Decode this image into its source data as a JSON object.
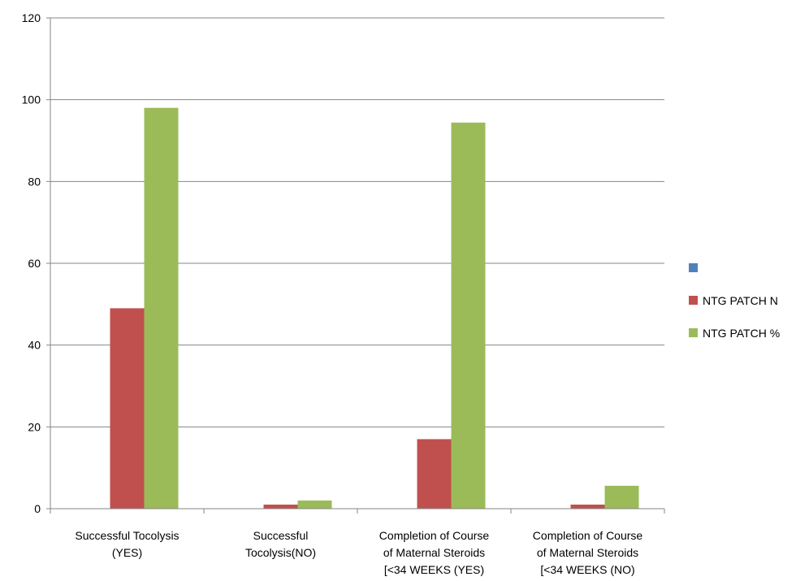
{
  "chart_data": {
    "type": "bar",
    "title": "",
    "xlabel": "",
    "ylabel": "",
    "ylim": [
      0,
      120
    ],
    "yticks": [
      0,
      20,
      40,
      60,
      80,
      100,
      120
    ],
    "grid": true,
    "legend_position": "right",
    "categories": [
      [
        "Successful Tocolysis",
        "(YES)"
      ],
      [
        "Successful",
        "Tocolysis(NO)"
      ],
      [
        "Completion of Course",
        "of Maternal Steroids",
        "[<34 WEEKS (YES)"
      ],
      [
        "Completion of Course",
        "of Maternal Steroids",
        "[<34 WEEKS (NO)"
      ]
    ],
    "series": [
      {
        "name": "",
        "color": "#4F81BD",
        "values": [
          0,
          0,
          0,
          0
        ]
      },
      {
        "name": "NTG PATCH N",
        "color": "#C0504D",
        "values": [
          49,
          1,
          17,
          1
        ]
      },
      {
        "name": "NTG PATCH %",
        "color": "#9BBB59",
        "values": [
          98,
          2,
          94.4,
          5.6
        ]
      }
    ]
  }
}
